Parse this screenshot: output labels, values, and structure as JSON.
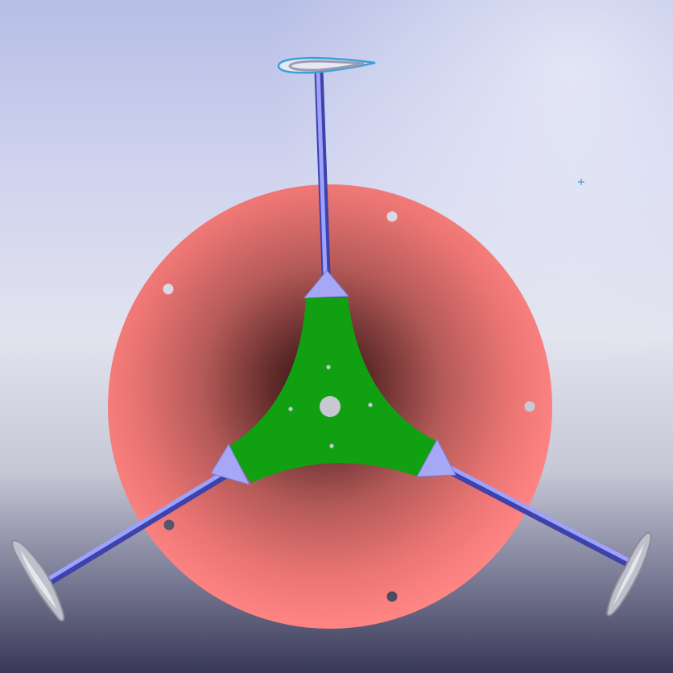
{
  "scene": {
    "description_label": "",
    "colors": {
      "background_top": "#b9c0e6",
      "background_mid": "#e4e6f2",
      "background_bottom": "#3a3a58",
      "disk_light": "#ff8a88",
      "disk_dark": "#3d1a1a",
      "hub": "#12a012",
      "strut": "#8f93f2",
      "strut_dark": "#3f42a8",
      "blade_outline": "#3aa0d8",
      "blade_fill": "#9a9a9a",
      "hole": "#c4c6d6",
      "cursor": "#2a8ad0"
    },
    "icons": [
      "cursor-crosshair-icon"
    ]
  }
}
